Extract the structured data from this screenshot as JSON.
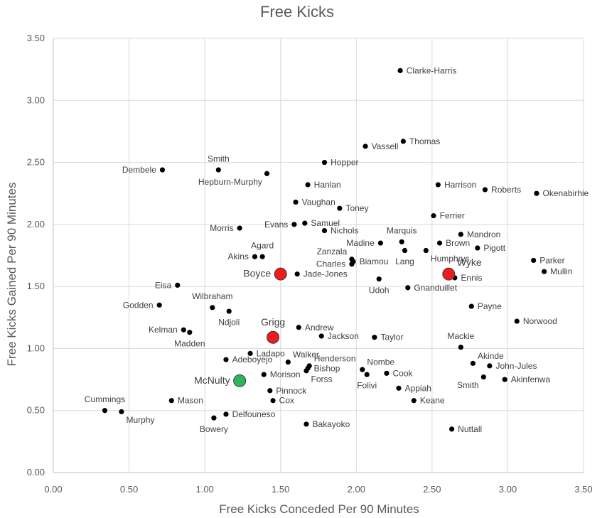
{
  "chart_data": {
    "type": "scatter",
    "title": "Free Kicks",
    "xlabel": "Free Kicks Conceded Per 90 Minutes",
    "ylabel": "Free Kicks Gained Per 90 Minutes",
    "xlim": [
      0,
      3.5
    ],
    "ylim": [
      0,
      3.5
    ],
    "x_ticks": [
      "0.00",
      "0.50",
      "1.00",
      "1.50",
      "2.00",
      "2.50",
      "3.00",
      "3.50"
    ],
    "y_ticks": [
      "0.00",
      "0.50",
      "1.00",
      "1.50",
      "2.00",
      "2.50",
      "3.00",
      "3.50"
    ],
    "grid": true,
    "colors": {
      "point": "#000000",
      "red": "#ee1c1c",
      "green": "#2db55d"
    },
    "points": [
      {
        "name": "Clarke-Harris",
        "x": 2.29,
        "y": 3.24,
        "lp": "r"
      },
      {
        "name": "Thomas",
        "x": 2.31,
        "y": 2.67,
        "lp": "r"
      },
      {
        "name": "Vassell",
        "x": 2.06,
        "y": 2.63,
        "lp": "r"
      },
      {
        "name": "Hopper",
        "x": 1.79,
        "y": 2.5,
        "lp": "r"
      },
      {
        "name": "Smith",
        "x": 1.09,
        "y": 2.44,
        "lp": "t"
      },
      {
        "name": "Dembele",
        "x": 0.72,
        "y": 2.44,
        "lp": "l"
      },
      {
        "name": "Hepburn-Murphy",
        "x": 1.41,
        "y": 2.41,
        "lp": "bl"
      },
      {
        "name": "Hanlan",
        "x": 1.68,
        "y": 2.32,
        "lp": "r"
      },
      {
        "name": "Harrison",
        "x": 2.54,
        "y": 2.32,
        "lp": "r"
      },
      {
        "name": "Roberts",
        "x": 2.85,
        "y": 2.28,
        "lp": "r"
      },
      {
        "name": "Okenabirhie",
        "x": 3.19,
        "y": 2.25,
        "lp": "r"
      },
      {
        "name": "Vaughan",
        "x": 1.6,
        "y": 2.18,
        "lp": "r"
      },
      {
        "name": "Toney",
        "x": 1.89,
        "y": 2.13,
        "lp": "r"
      },
      {
        "name": "Ferrier",
        "x": 2.51,
        "y": 2.07,
        "lp": "r"
      },
      {
        "name": "Evans",
        "x": 1.59,
        "y": 2.0,
        "lp": "l"
      },
      {
        "name": "Samuel",
        "x": 1.66,
        "y": 2.01,
        "lp": "r"
      },
      {
        "name": "Morris",
        "x": 1.23,
        "y": 1.97,
        "lp": "l"
      },
      {
        "name": "Nichols",
        "x": 1.79,
        "y": 1.95,
        "lp": "r"
      },
      {
        "name": "Mandron",
        "x": 2.69,
        "y": 1.92,
        "lp": "r"
      },
      {
        "name": "Marquis",
        "x": 2.3,
        "y": 1.86,
        "lp": "t"
      },
      {
        "name": "Madine",
        "x": 2.16,
        "y": 1.85,
        "lp": "l"
      },
      {
        "name": "Brown",
        "x": 2.55,
        "y": 1.85,
        "lp": "r"
      },
      {
        "name": "Pigott",
        "x": 2.8,
        "y": 1.81,
        "lp": "r"
      },
      {
        "name": "Agard",
        "x": 1.38,
        "y": 1.74,
        "lp": "t"
      },
      {
        "name": "Akins",
        "x": 1.33,
        "y": 1.74,
        "lp": "l"
      },
      {
        "name": "Zanzala",
        "x": 1.97,
        "y": 1.72,
        "lp": "tl"
      },
      {
        "name": "Biamou",
        "x": 1.98,
        "y": 1.7,
        "lp": "r"
      },
      {
        "name": "Charles",
        "x": 1.97,
        "y": 1.68,
        "lp": "l"
      },
      {
        "name": "Lang",
        "x": 2.32,
        "y": 1.79,
        "lp": "b"
      },
      {
        "name": "Humphrys",
        "x": 2.46,
        "y": 1.79,
        "lp": "br"
      },
      {
        "name": "Parker",
        "x": 3.17,
        "y": 1.71,
        "lp": "r"
      },
      {
        "name": "Mullin",
        "x": 3.24,
        "y": 1.62,
        "lp": "r"
      },
      {
        "name": "Jade-Jones",
        "x": 1.61,
        "y": 1.6,
        "lp": "r"
      },
      {
        "name": "Ennis",
        "x": 2.65,
        "y": 1.57,
        "lp": "r"
      },
      {
        "name": "Udoh",
        "x": 2.15,
        "y": 1.56,
        "lp": "b"
      },
      {
        "name": "Gnanduillet",
        "x": 2.34,
        "y": 1.49,
        "lp": "r"
      },
      {
        "name": "Eisa",
        "x": 0.82,
        "y": 1.51,
        "lp": "l"
      },
      {
        "name": "Payne",
        "x": 2.76,
        "y": 1.34,
        "lp": "r"
      },
      {
        "name": "Godden",
        "x": 0.7,
        "y": 1.35,
        "lp": "l"
      },
      {
        "name": "Wilbraham",
        "x": 1.05,
        "y": 1.33,
        "lp": "t"
      },
      {
        "name": "Ndjoli",
        "x": 1.16,
        "y": 1.3,
        "lp": "b"
      },
      {
        "name": "Norwood",
        "x": 3.06,
        "y": 1.22,
        "lp": "r"
      },
      {
        "name": "Andrew",
        "x": 1.62,
        "y": 1.17,
        "lp": "r"
      },
      {
        "name": "Kelman",
        "x": 0.86,
        "y": 1.15,
        "lp": "l"
      },
      {
        "name": "Madden",
        "x": 0.9,
        "y": 1.13,
        "lp": "b"
      },
      {
        "name": "Jackson",
        "x": 1.77,
        "y": 1.1,
        "lp": "r"
      },
      {
        "name": "Taylor",
        "x": 2.12,
        "y": 1.09,
        "lp": "r"
      },
      {
        "name": "Mackie",
        "x": 2.69,
        "y": 1.01,
        "lp": "t"
      },
      {
        "name": "Ladapo",
        "x": 1.3,
        "y": 0.96,
        "lp": "r"
      },
      {
        "name": "Walker",
        "x": 1.55,
        "y": 0.89,
        "lp": "tr"
      },
      {
        "name": "Adeboyejo",
        "x": 1.14,
        "y": 0.91,
        "lp": "r"
      },
      {
        "name": "Henderson",
        "x": 1.69,
        "y": 0.86,
        "lp": "tr"
      },
      {
        "name": "Akinde",
        "x": 2.77,
        "y": 0.88,
        "lp": "tr"
      },
      {
        "name": "John-Jules",
        "x": 2.88,
        "y": 0.86,
        "lp": "r"
      },
      {
        "name": "Bishop",
        "x": 1.68,
        "y": 0.84,
        "lp": "r"
      },
      {
        "name": "Nombe",
        "x": 2.04,
        "y": 0.83,
        "lp": "tr"
      },
      {
        "name": "Forss",
        "x": 1.67,
        "y": 0.82,
        "lp": "br"
      },
      {
        "name": "Cook",
        "x": 2.2,
        "y": 0.8,
        "lp": "r"
      },
      {
        "name": "Morison",
        "x": 1.39,
        "y": 0.79,
        "lp": "r"
      },
      {
        "name": "Folivi",
        "x": 2.07,
        "y": 0.79,
        "lp": "b"
      },
      {
        "name": "Smith",
        "x": 2.84,
        "y": 0.77,
        "lp": "bl"
      },
      {
        "name": "Akinfenwa",
        "x": 2.98,
        "y": 0.75,
        "lp": "r"
      },
      {
        "name": "Appiah",
        "x": 2.28,
        "y": 0.68,
        "lp": "r"
      },
      {
        "name": "Pinnock",
        "x": 1.43,
        "y": 0.66,
        "lp": "r"
      },
      {
        "name": "Cox",
        "x": 1.45,
        "y": 0.58,
        "lp": "r"
      },
      {
        "name": "Keane",
        "x": 2.38,
        "y": 0.58,
        "lp": "r"
      },
      {
        "name": "Mason",
        "x": 0.78,
        "y": 0.58,
        "lp": "r"
      },
      {
        "name": "Cummings",
        "x": 0.34,
        "y": 0.5,
        "lp": "t"
      },
      {
        "name": "Murphy",
        "x": 0.45,
        "y": 0.49,
        "lp": "br"
      },
      {
        "name": "Delfouneso",
        "x": 1.14,
        "y": 0.47,
        "lp": "r"
      },
      {
        "name": "Bowery",
        "x": 1.06,
        "y": 0.44,
        "lp": "b"
      },
      {
        "name": "Bakayoko",
        "x": 1.67,
        "y": 0.39,
        "lp": "r"
      },
      {
        "name": "Nuttall",
        "x": 2.63,
        "y": 0.35,
        "lp": "r"
      }
    ],
    "highlighted": [
      {
        "name": "Boyce",
        "x": 1.5,
        "y": 1.6,
        "color": "red",
        "lp": "l"
      },
      {
        "name": "Wyke",
        "x": 2.61,
        "y": 1.6,
        "color": "red",
        "lp": "tr"
      },
      {
        "name": "Grigg",
        "x": 1.45,
        "y": 1.09,
        "color": "red",
        "lp": "t"
      },
      {
        "name": "McNulty",
        "x": 1.23,
        "y": 0.74,
        "color": "green",
        "lp": "l"
      }
    ]
  }
}
